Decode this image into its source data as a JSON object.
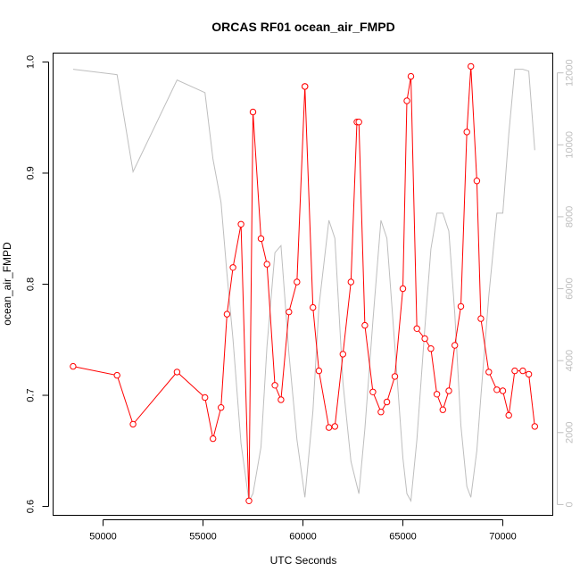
{
  "chart_data": {
    "type": "line",
    "title": "ORCAS RF01 ocean_air_FMPD",
    "xlabel": "UTC Seconds",
    "ylabel": "ocean_air_FMPD",
    "xlim": [
      47500,
      72500
    ],
    "ylim": [
      0.6,
      1.0
    ],
    "y2lim": [
      0,
      12500
    ],
    "x_ticks": [
      50000,
      55000,
      60000,
      65000,
      70000
    ],
    "x_tick_labels": [
      "50000",
      "55000",
      "60000",
      "65000",
      "70000"
    ],
    "y_ticks": [
      0.6,
      0.7,
      0.8,
      0.9,
      1.0
    ],
    "y_tick_labels": [
      "0.6",
      "0.7",
      "0.8",
      "0.9",
      "1.0"
    ],
    "y2_ticks": [
      0,
      2000,
      4000,
      6000,
      8000,
      10000,
      12000
    ],
    "y2_tick_labels": [
      "0",
      "2000",
      "4000",
      "6000",
      "8000",
      "10000",
      "12000"
    ],
    "colors": {
      "primary": "#ff0000",
      "secondary": "#bebebe"
    },
    "grid": false,
    "series": [
      {
        "axis": "left",
        "style": "line-with-open-circles",
        "x": [
          48500,
          50700,
          51500,
          53700,
          55100,
          55500,
          55900,
          56200,
          56500,
          56900,
          57300,
          57500,
          57900,
          58200,
          58600,
          58900,
          59300,
          59700,
          60100,
          60100,
          60500,
          60800,
          61300,
          61600,
          62000,
          62400,
          62700,
          62800,
          63100,
          63500,
          63900,
          64200,
          64600,
          65000,
          65200,
          65400,
          65700,
          66100,
          66400,
          66700,
          67000,
          67300,
          67600,
          67900,
          68200,
          68400,
          68700,
          68900,
          69300,
          69700,
          70000,
          70300,
          70600,
          71000,
          71300,
          71600
        ],
        "y": [
          0.726,
          0.718,
          0.674,
          0.721,
          0.698,
          0.661,
          0.689,
          0.773,
          0.815,
          0.854,
          0.605,
          0.955,
          0.841,
          0.818,
          0.709,
          0.696,
          0.775,
          0.802,
          0.978,
          0.978,
          0.779,
          0.722,
          0.671,
          0.672,
          0.737,
          0.802,
          0.946,
          0.946,
          0.763,
          0.703,
          0.685,
          0.694,
          0.717,
          0.796,
          0.965,
          0.987,
          0.76,
          0.751,
          0.742,
          0.701,
          0.687,
          0.704,
          0.745,
          0.78,
          0.937,
          0.996,
          0.893,
          0.769,
          0.721,
          0.705,
          0.704,
          0.682,
          0.722,
          0.722,
          0.719,
          0.672
        ]
      },
      {
        "axis": "right",
        "style": "line",
        "x": [
          48500,
          50700,
          51500,
          53700,
          55100,
          55500,
          55900,
          56200,
          56500,
          56900,
          57300,
          57500,
          57900,
          58200,
          58600,
          58900,
          59300,
          59700,
          60100,
          60500,
          60800,
          61300,
          61600,
          62000,
          62400,
          62800,
          63100,
          63500,
          63900,
          64200,
          64600,
          65000,
          65200,
          65400,
          65700,
          66100,
          66400,
          66700,
          67000,
          67300,
          67600,
          67900,
          68200,
          68400,
          68700,
          68900,
          69300,
          69700,
          70000,
          70300,
          70600,
          71000,
          71300,
          71600
        ],
        "y": [
          12100,
          11950,
          9250,
          11800,
          11450,
          9600,
          8400,
          6400,
          4600,
          1700,
          100,
          300,
          1600,
          4400,
          7000,
          7200,
          4200,
          1800,
          200,
          2600,
          5500,
          7900,
          7400,
          3400,
          1200,
          300,
          2100,
          5100,
          7900,
          7400,
          4400,
          1300,
          300,
          100,
          1800,
          4900,
          7100,
          8100,
          8100,
          7600,
          5300,
          2200,
          500,
          200,
          1500,
          3000,
          5800,
          8100,
          8100,
          10300,
          12100,
          12100,
          12050,
          9850
        ]
      }
    ]
  }
}
